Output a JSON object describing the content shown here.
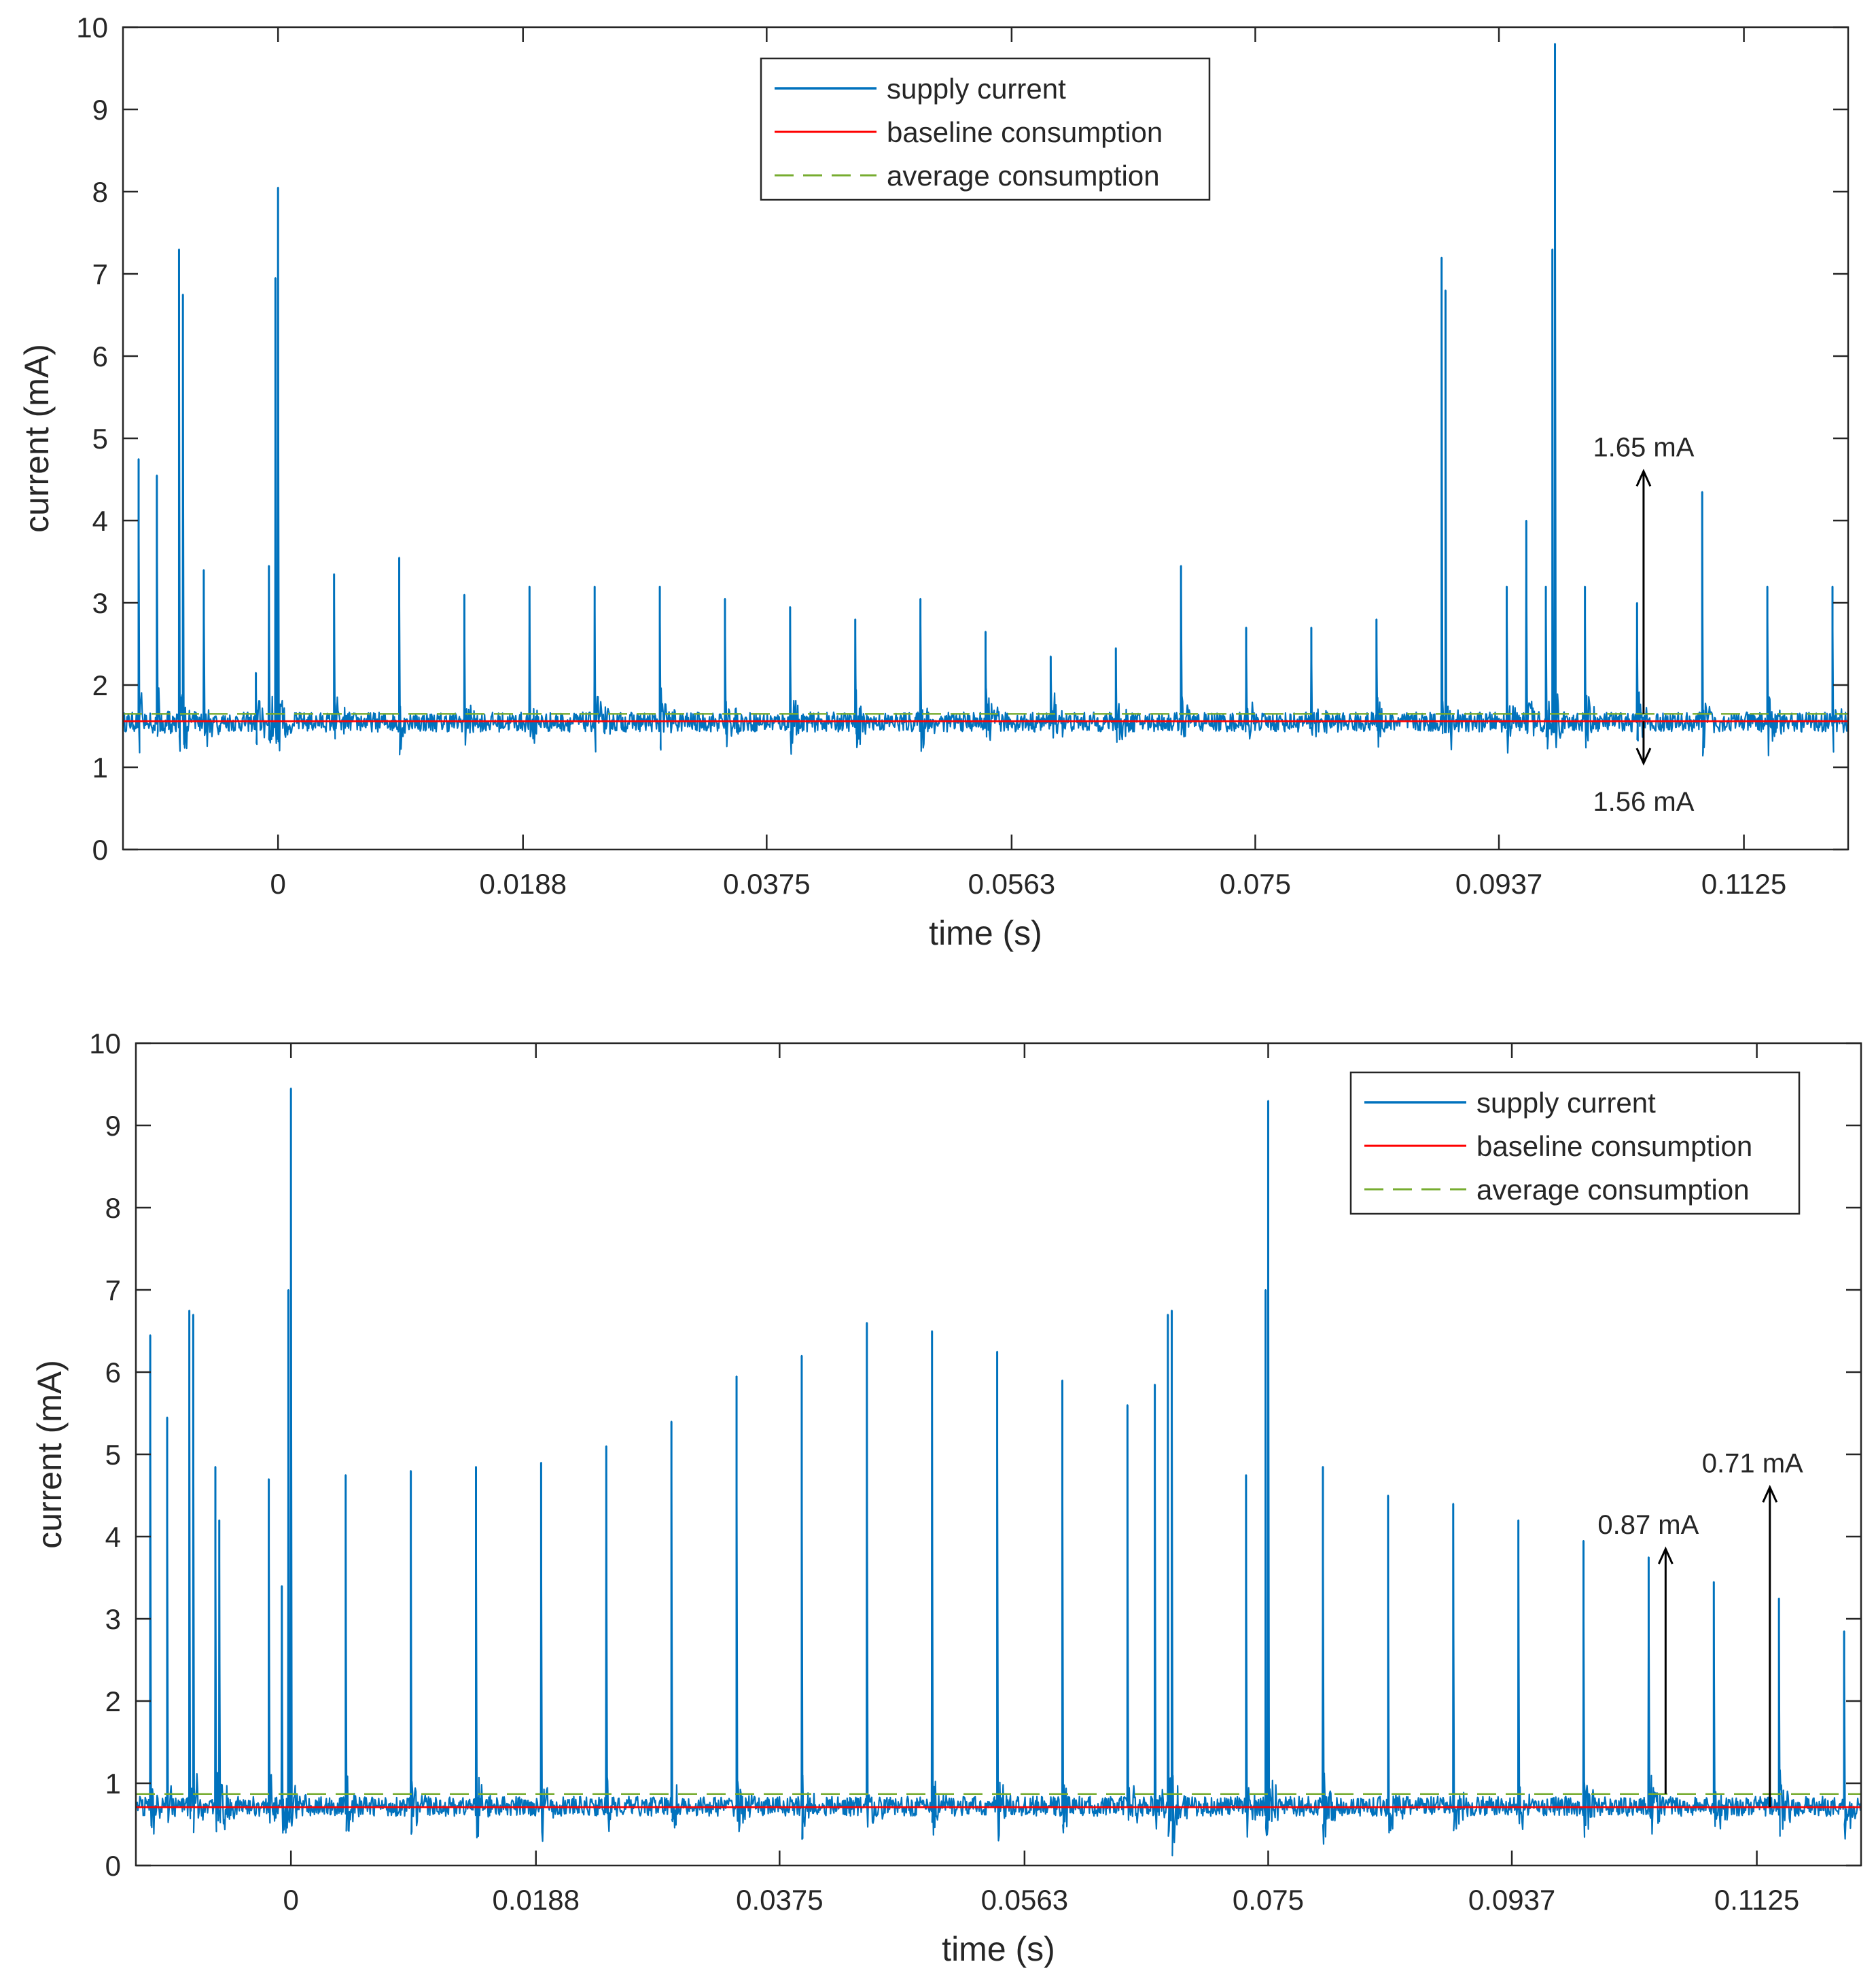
{
  "colors": {
    "supply": "#0072BD",
    "baseline": "#FF0000",
    "average": "#77AC30",
    "axis": "#262626",
    "annotation": "#000000"
  },
  "chart_data": [
    {
      "type": "line",
      "xlabel": "time (s)",
      "ylabel": "current (mA)",
      "xlim": [
        -0.0119,
        0.1205
      ],
      "ylim": [
        0,
        10
      ],
      "xticks": [
        0,
        0.0188,
        0.0375,
        0.0563,
        0.075,
        0.0937,
        0.1125
      ],
      "xtick_labels": [
        "0",
        "0.0188",
        "0.0375",
        "0.0563",
        "0.075",
        "0.0937",
        "0.1125"
      ],
      "yticks": [
        0,
        1,
        2,
        3,
        4,
        5,
        6,
        7,
        8,
        9,
        10
      ],
      "ytick_labels": [
        "0",
        "1",
        "2",
        "3",
        "4",
        "5",
        "6",
        "7",
        "8",
        "9",
        "10"
      ],
      "legend": {
        "position": "top-center",
        "entries": [
          "supply current",
          "baseline consumption",
          "average consumption"
        ]
      },
      "series": [
        {
          "name": "supply current",
          "noise_base": 1.55,
          "noise_amp": 0.12,
          "spikes": [
            [
              -0.0107,
              4.75
            ],
            [
              -0.0093,
              4.55
            ],
            [
              -0.0076,
              7.3
            ],
            [
              -0.0073,
              6.75
            ],
            [
              -0.0057,
              3.4
            ],
            [
              -0.0017,
              2.15
            ],
            [
              -0.0007,
              3.45
            ],
            [
              -0.0002,
              6.95
            ],
            [
              0.0,
              8.05
            ],
            [
              0.0043,
              3.35
            ],
            [
              0.0093,
              3.55
            ],
            [
              0.0143,
              3.1
            ],
            [
              0.0193,
              3.2
            ],
            [
              0.0243,
              3.2
            ],
            [
              0.0293,
              3.2
            ],
            [
              0.0343,
              3.05
            ],
            [
              0.0393,
              2.95
            ],
            [
              0.0443,
              2.8
            ],
            [
              0.0493,
              3.05
            ],
            [
              0.0543,
              2.65
            ],
            [
              0.0593,
              2.35
            ],
            [
              0.0643,
              2.45
            ],
            [
              0.0693,
              3.45
            ],
            [
              0.0743,
              2.7
            ],
            [
              0.0793,
              2.7
            ],
            [
              0.0843,
              2.8
            ],
            [
              0.0893,
              7.2
            ],
            [
              0.0896,
              6.8
            ],
            [
              0.0943,
              3.2
            ],
            [
              0.0958,
              4.0
            ],
            [
              0.0973,
              3.2
            ],
            [
              0.0978,
              7.3
            ],
            [
              0.098,
              9.8
            ],
            [
              0.1003,
              3.2
            ],
            [
              0.1043,
              3.0
            ],
            [
              0.1093,
              4.35
            ],
            [
              0.1143,
              3.2
            ],
            [
              0.1193,
              3.2
            ]
          ]
        },
        {
          "name": "baseline consumption",
          "value": 1.56
        },
        {
          "name": "average consumption",
          "value": 1.65
        }
      ],
      "annotations": [
        {
          "text": "1.65 mA",
          "x": 0.1048,
          "y_from": 1.65,
          "y_to": 4.6,
          "label_pos": "above"
        },
        {
          "text": "1.56 mA",
          "x": 0.1048,
          "y_from": 1.56,
          "y_to": 1.05,
          "label_pos": "below"
        }
      ]
    },
    {
      "type": "line",
      "xlabel": "time (s)",
      "ylabel": "current (mA)",
      "xlim": [
        -0.0119,
        0.1205
      ],
      "ylim": [
        0,
        10
      ],
      "xticks": [
        0,
        0.0188,
        0.0375,
        0.0563,
        0.075,
        0.0937,
        0.1125
      ],
      "xtick_labels": [
        "0",
        "0.0188",
        "0.0375",
        "0.0563",
        "0.075",
        "0.0937",
        "0.1125"
      ],
      "yticks": [
        0,
        1,
        2,
        3,
        4,
        5,
        6,
        7,
        8,
        9,
        10
      ],
      "ytick_labels": [
        "0",
        "1",
        "2",
        "3",
        "4",
        "5",
        "6",
        "7",
        "8",
        "9",
        "10"
      ],
      "legend": {
        "position": "top-right",
        "entries": [
          "supply current",
          "baseline consumption",
          "average consumption"
        ]
      },
      "series": [
        {
          "name": "supply current",
          "noise_base": 0.72,
          "noise_amp": 0.12,
          "spikes": [
            [
              -0.0108,
              6.45
            ],
            [
              -0.0095,
              5.45
            ],
            [
              -0.0078,
              6.75
            ],
            [
              -0.0075,
              6.7
            ],
            [
              -0.0058,
              4.85
            ],
            [
              -0.0055,
              4.2
            ],
            [
              -0.0017,
              4.7
            ],
            [
              -0.0007,
              3.4
            ],
            [
              -0.0002,
              7.0
            ],
            [
              0.0,
              9.45
            ],
            [
              0.0042,
              4.75
            ],
            [
              0.0092,
              4.8
            ],
            [
              0.0142,
              4.85
            ],
            [
              0.0192,
              4.9
            ],
            [
              0.0242,
              5.1
            ],
            [
              0.0292,
              5.4
            ],
            [
              0.0342,
              5.95
            ],
            [
              0.0392,
              6.2
            ],
            [
              0.0442,
              6.6
            ],
            [
              0.0492,
              6.5
            ],
            [
              0.0542,
              6.25
            ],
            [
              0.0592,
              5.9
            ],
            [
              0.0642,
              5.6
            ],
            [
              0.0663,
              5.85
            ],
            [
              0.0673,
              6.7
            ],
            [
              0.0676,
              6.75
            ],
            [
              0.0733,
              4.75
            ],
            [
              0.0748,
              7.0
            ],
            [
              0.075,
              9.3
            ],
            [
              0.0792,
              4.85
            ],
            [
              0.0842,
              4.5
            ],
            [
              0.0892,
              4.4
            ],
            [
              0.0942,
              4.2
            ],
            [
              0.0992,
              3.95
            ],
            [
              0.1042,
              3.75
            ],
            [
              0.1092,
              3.45
            ],
            [
              0.1142,
              3.25
            ],
            [
              0.1192,
              2.85
            ]
          ]
        },
        {
          "name": "baseline consumption",
          "value": 0.71
        },
        {
          "name": "average consumption",
          "value": 0.87
        }
      ],
      "annotations": [
        {
          "text": "0.87 mA",
          "x": 0.1055,
          "y_from": 0.87,
          "y_to": 3.85,
          "label_pos": "above-right"
        },
        {
          "text": "0.71 mA",
          "x": 0.1135,
          "y_from": 0.71,
          "y_to": 4.6,
          "label_pos": "above-right"
        }
      ]
    }
  ]
}
